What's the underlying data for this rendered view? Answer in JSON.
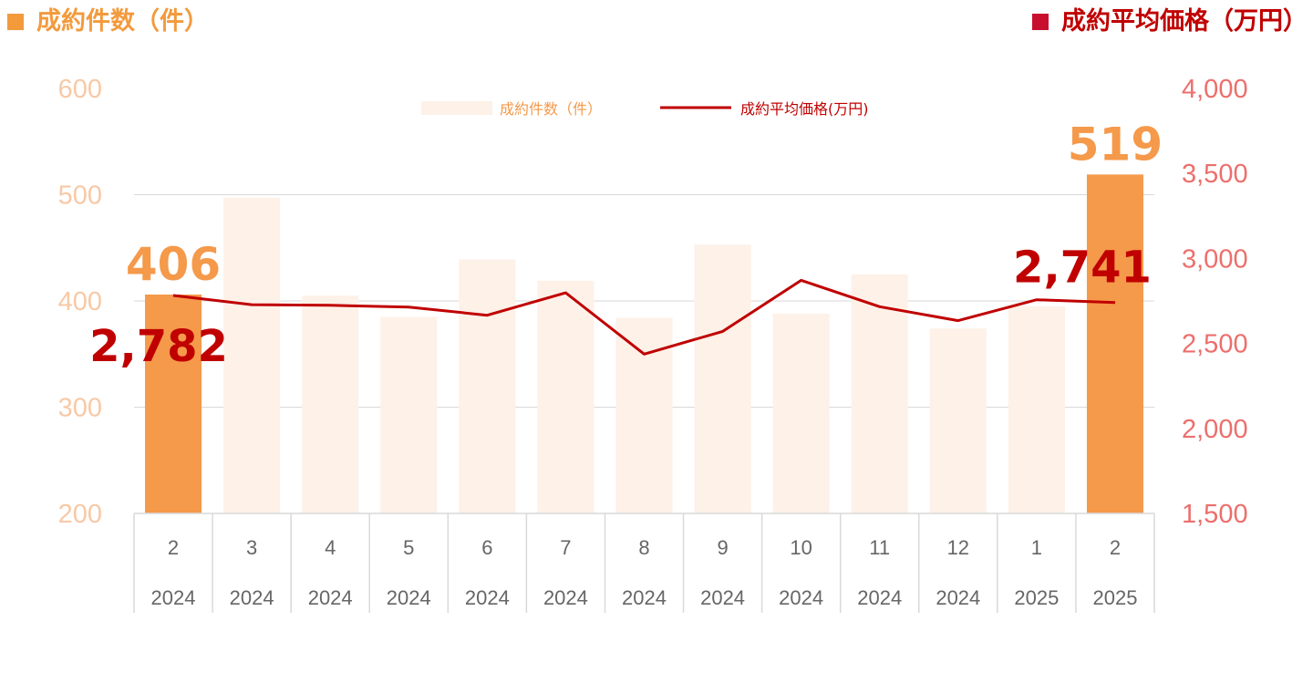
{
  "headers": {
    "left_title": "成約件数（件）",
    "right_title": "成約平均価格（万円）"
  },
  "colors": {
    "bar_highlight": "#f5994a",
    "bar_muted": "#fdf1e8",
    "line": "#c00000",
    "left_axis": "#f7c9a6",
    "right_axis": "#ec6f6c",
    "label_count": "#f5994a",
    "label_price": "#c00000"
  },
  "chart_data": {
    "type": "bar+line",
    "categories": [
      "2",
      "3",
      "4",
      "5",
      "6",
      "7",
      "8",
      "9",
      "10",
      "11",
      "12",
      "1",
      "2"
    ],
    "years": [
      "2024",
      "2024",
      "2024",
      "2024",
      "2024",
      "2024",
      "2024",
      "2024",
      "2024",
      "2024",
      "2024",
      "2025",
      "2025"
    ],
    "series": [
      {
        "name": "成約件数(件)",
        "type": "bar",
        "axis": "left",
        "values": [
          406,
          497,
          405,
          385,
          439,
          419,
          384,
          453,
          388,
          425,
          374,
          395,
          519
        ],
        "highlighted_indices": [
          0,
          12
        ]
      },
      {
        "name": "成約平均価格(万円)",
        "type": "line",
        "axis": "right",
        "values": [
          2782,
          2728,
          2724,
          2714,
          2666,
          2798,
          2437,
          2571,
          2871,
          2716,
          2634,
          2757,
          2741
        ]
      }
    ],
    "left_axis": {
      "ylim": [
        200,
        600
      ],
      "ticks": [
        "200",
        "300",
        "400",
        "500",
        "600"
      ]
    },
    "right_axis": {
      "ylim": [
        1500,
        4000
      ],
      "ticks": [
        "1,500",
        "2,000",
        "2,500",
        "3,000",
        "3,500",
        "4,000"
      ]
    },
    "legend": {
      "bar_label": "成約件数（件）",
      "line_label": "成約平均価格(万円)",
      "placement": "top-center"
    },
    "annotations": [
      {
        "text": "406",
        "index": 0,
        "series": "count"
      },
      {
        "text": "2,782",
        "index": 0,
        "series": "price"
      },
      {
        "text": "519",
        "index": 12,
        "series": "count"
      },
      {
        "text": "2,741",
        "index": 12,
        "series": "price"
      }
    ],
    "grid": true
  }
}
